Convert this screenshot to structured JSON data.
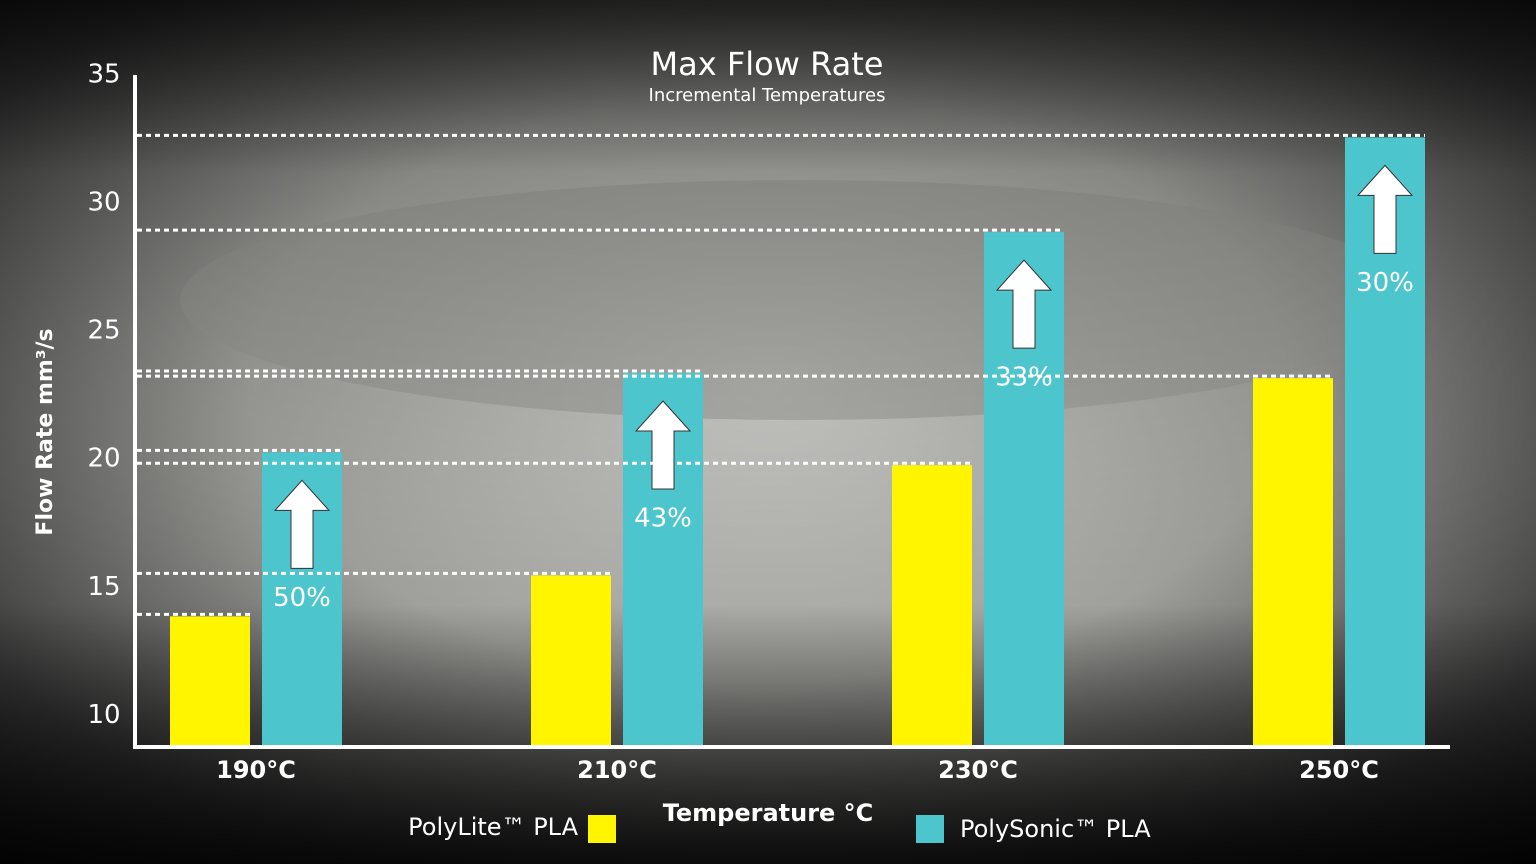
{
  "chart_data": {
    "type": "bar",
    "title": "Max Flow Rate",
    "subtitle": "Incremental Temperatures",
    "x_label": "Temperature °C",
    "y_label": "Flow Rate mm³/s",
    "categories": [
      "190°C",
      "210°C",
      "230°C",
      "250°C"
    ],
    "series": [
      {
        "name": "PolyLite™ PLA",
        "color": "#fff500",
        "values": [
          14.1,
          15.7,
          20.0,
          23.4
        ]
      },
      {
        "name": "PolySonic™ PLA",
        "color": "#4cc5cc",
        "values": [
          20.5,
          23.6,
          29.1,
          32.8
        ]
      }
    ],
    "annotations": [
      "50%",
      "43%",
      "33%",
      "30%"
    ],
    "ylim": [
      9,
      35
    ],
    "yticks": [
      10,
      15,
      20,
      25,
      30,
      35
    ]
  }
}
